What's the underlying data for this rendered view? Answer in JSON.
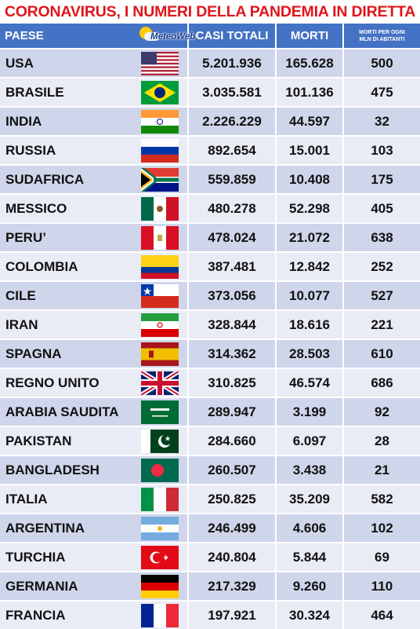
{
  "title": "CORONAVIRUS, I NUMERI DELLA PANDEMIA IN DIRETTA",
  "header": {
    "country": "PAESE",
    "logo": "MeteoWeb",
    "cases": "CASI TOTALI",
    "deaths": "MORTI",
    "rate_line1": "MORTI PER OGNI",
    "rate_line2": "MLN DI ABITANTI"
  },
  "rows": [
    {
      "country": "USA",
      "flag": "us-flag-icon",
      "cases": "5.201.936",
      "deaths": "165.628",
      "rate": "500"
    },
    {
      "country": "BRASILE",
      "flag": "brazil-flag-icon",
      "cases": "3.035.581",
      "deaths": "101.136",
      "rate": "475"
    },
    {
      "country": "INDIA",
      "flag": "india-flag-icon",
      "cases": "2.226.229",
      "deaths": "44.597",
      "rate": "32"
    },
    {
      "country": "RUSSIA",
      "flag": "russia-flag-icon",
      "cases": "892.654",
      "deaths": "15.001",
      "rate": "103"
    },
    {
      "country": "SUDAFRICA",
      "flag": "south-africa-flag-icon",
      "cases": "559.859",
      "deaths": "10.408",
      "rate": "175"
    },
    {
      "country": "MESSICO",
      "flag": "mexico-flag-icon",
      "cases": "480.278",
      "deaths": "52.298",
      "rate": "405"
    },
    {
      "country": "PERU’",
      "flag": "peru-flag-icon",
      "cases": "478.024",
      "deaths": "21.072",
      "rate": "638"
    },
    {
      "country": "COLOMBIA",
      "flag": "colombia-flag-icon",
      "cases": "387.481",
      "deaths": "12.842",
      "rate": "252"
    },
    {
      "country": "CILE",
      "flag": "chile-flag-icon",
      "cases": "373.056",
      "deaths": "10.077",
      "rate": "527"
    },
    {
      "country": "IRAN",
      "flag": "iran-flag-icon",
      "cases": "328.844",
      "deaths": "18.616",
      "rate": "221"
    },
    {
      "country": "SPAGNA",
      "flag": "spain-flag-icon",
      "cases": "314.362",
      "deaths": "28.503",
      "rate": "610"
    },
    {
      "country": "REGNO UNITO",
      "flag": "uk-flag-icon",
      "cases": "310.825",
      "deaths": "46.574",
      "rate": "686"
    },
    {
      "country": "ARABIA SAUDITA",
      "flag": "saudi-arabia-flag-icon",
      "cases": "289.947",
      "deaths": "3.199",
      "rate": "92"
    },
    {
      "country": "PAKISTAN",
      "flag": "pakistan-flag-icon",
      "cases": "284.660",
      "deaths": "6.097",
      "rate": "28"
    },
    {
      "country": "BANGLADESH",
      "flag": "bangladesh-flag-icon",
      "cases": "260.507",
      "deaths": "3.438",
      "rate": "21"
    },
    {
      "country": "ITALIA",
      "flag": "italy-flag-icon",
      "cases": "250.825",
      "deaths": "35.209",
      "rate": "582"
    },
    {
      "country": "ARGENTINA",
      "flag": "argentina-flag-icon",
      "cases": "246.499",
      "deaths": "4.606",
      "rate": "102"
    },
    {
      "country": "TURCHIA",
      "flag": "turkey-flag-icon",
      "cases": "240.804",
      "deaths": "5.844",
      "rate": "69"
    },
    {
      "country": "GERMANIA",
      "flag": "germany-flag-icon",
      "cases": "217.329",
      "deaths": "9.260",
      "rate": "110"
    },
    {
      "country": "FRANCIA",
      "flag": "france-flag-icon",
      "cases": "197.921",
      "deaths": "30.324",
      "rate": "464"
    }
  ],
  "colors": {
    "title": "#e0161b",
    "header_bg": "#4472c4",
    "row_odd": "#cfd5ea",
    "row_even": "#e9ebf5"
  }
}
